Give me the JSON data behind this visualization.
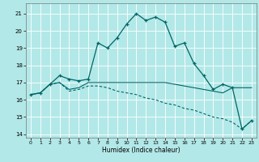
{
  "xlabel": "Humidex (Indice chaleur)",
  "bg_color": "#b3e8e8",
  "grid_color": "#ffffff",
  "line_color": "#006666",
  "xlim": [
    -0.5,
    23.5
  ],
  "ylim": [
    13.8,
    21.6
  ],
  "yticks": [
    14,
    15,
    16,
    17,
    18,
    19,
    20,
    21
  ],
  "xticks": [
    0,
    1,
    2,
    3,
    4,
    5,
    6,
    7,
    8,
    9,
    10,
    11,
    12,
    13,
    14,
    15,
    16,
    17,
    18,
    19,
    20,
    21,
    22,
    23
  ],
  "series1_x": [
    0,
    1,
    2,
    3,
    4,
    5,
    6,
    7,
    8,
    9,
    10,
    11,
    12,
    13,
    14,
    15,
    16,
    17,
    18,
    19,
    20,
    21,
    22,
    23
  ],
  "series1_y": [
    16.3,
    16.4,
    16.9,
    17.4,
    17.2,
    17.1,
    17.2,
    19.3,
    19.0,
    19.6,
    20.4,
    21.0,
    20.6,
    20.8,
    20.5,
    19.1,
    19.3,
    18.1,
    17.4,
    16.6,
    16.9,
    16.7,
    14.3,
    14.8
  ],
  "series2_x": [
    0,
    1,
    2,
    3,
    4,
    5,
    6,
    7,
    8,
    9,
    10,
    11,
    12,
    13,
    14,
    15,
    16,
    17,
    18,
    19,
    20,
    21,
    22,
    23
  ],
  "series2_y": [
    16.3,
    16.4,
    16.9,
    17.0,
    16.6,
    16.7,
    17.0,
    17.0,
    17.0,
    17.0,
    17.0,
    17.0,
    17.0,
    17.0,
    17.0,
    16.9,
    16.8,
    16.7,
    16.6,
    16.5,
    16.4,
    16.7,
    16.7,
    16.7
  ],
  "series3_x": [
    0,
    1,
    2,
    3,
    4,
    5,
    6,
    7,
    8,
    9,
    10,
    11,
    12,
    13,
    14,
    15,
    16,
    17,
    18,
    19,
    20,
    21,
    22,
    23
  ],
  "series3_y": [
    16.3,
    16.4,
    16.9,
    17.0,
    16.5,
    16.6,
    16.8,
    16.8,
    16.7,
    16.5,
    16.4,
    16.3,
    16.1,
    16.0,
    15.8,
    15.7,
    15.5,
    15.4,
    15.2,
    15.0,
    14.9,
    14.7,
    14.3,
    14.8
  ]
}
